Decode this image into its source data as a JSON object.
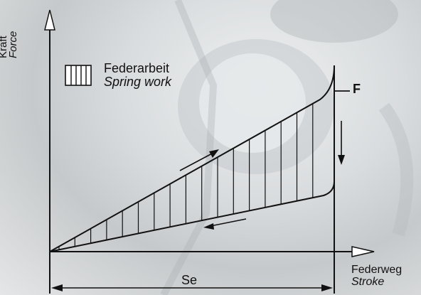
{
  "diagram": {
    "legend": {
      "label_de": "Federarbeit",
      "label_en": "Spring work"
    },
    "axis_y": {
      "label_de": "Kraft",
      "label_en": "Force"
    },
    "axis_x": {
      "label_de": "Federweg",
      "label_en": "Stroke"
    },
    "force_label": "F",
    "stroke_label": "Se"
  },
  "colors": {
    "line": "#111111"
  }
}
